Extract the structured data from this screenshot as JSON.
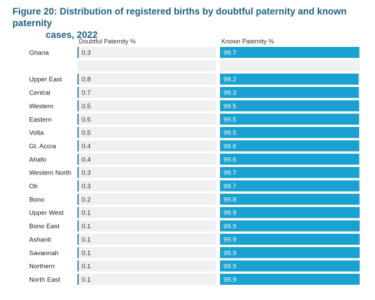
{
  "title": {
    "line1": "Figure 20: Distribution of registered births by doubtful paternity and known paternity",
    "line2": "cases, 2022"
  },
  "colors": {
    "title": "#1d5f82",
    "track": "#f0f0f0",
    "doubtful_bar": "#1f6f9f",
    "known_bar": "#1aa1cf"
  },
  "chart_data": {
    "type": "bar",
    "orientation": "horizontal",
    "title": "Figure 20: Distribution of registered births by doubtful paternity and known paternity cases, 2022",
    "categories": [
      "Ghana",
      "",
      "Upper East",
      "Central",
      "Western",
      "Eastern",
      "Volta",
      "Gt. Accra",
      "Ahafo",
      "Western North",
      "Oti",
      "Bono",
      "Upper West",
      "Bono East",
      "Ashanti",
      "Savannah",
      "Northern",
      "North East"
    ],
    "series": [
      {
        "name": "Doubtful Paternity %",
        "values": [
          0.3,
          null,
          0.8,
          0.7,
          0.5,
          0.5,
          0.5,
          0.4,
          0.4,
          0.3,
          0.3,
          0.2,
          0.1,
          0.1,
          0.1,
          0.1,
          0.1,
          0.1
        ],
        "labels": [
          "0.3",
          "",
          "0.8",
          "0.7",
          "0.5",
          "0.5",
          "0.5",
          "0.4",
          "0.4",
          "0.3",
          "0.3",
          "0.2",
          "0.1",
          "0.1",
          "0.1",
          "0.1",
          "0.1",
          "0.1"
        ],
        "xlim": [
          0,
          100
        ]
      },
      {
        "name": "Known Paternity %",
        "values": [
          99.7,
          null,
          99.2,
          99.3,
          99.5,
          99.5,
          99.5,
          99.6,
          99.6,
          99.7,
          99.7,
          99.8,
          99.9,
          99.9,
          99.9,
          99.9,
          99.9,
          99.9
        ],
        "labels": [
          "99.7",
          "",
          "99.2",
          "99.3",
          "99.5",
          "99.5",
          "99.5",
          "99.6",
          "99.6",
          "99.7",
          "99.7",
          "99.8",
          "99.9",
          "99.9",
          "99.9",
          "99.9",
          "99.9",
          "99.9"
        ],
        "xlim": [
          0,
          100
        ]
      }
    ],
    "grid": false
  }
}
